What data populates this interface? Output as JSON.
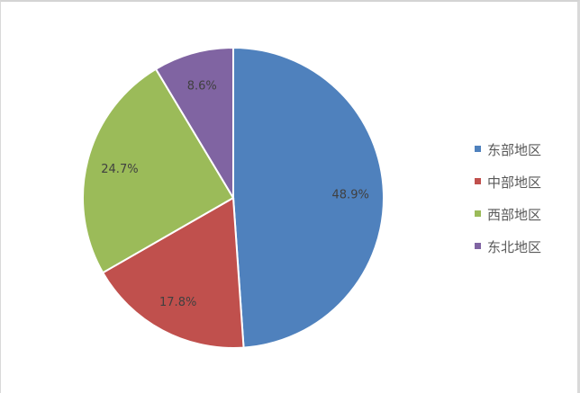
{
  "chart_data": {
    "type": "pie",
    "start_angle": "top",
    "direction": "clockwise",
    "legend_position": "right",
    "categories": [
      "东部地区",
      "中部地区",
      "西部地区",
      "东北地区"
    ],
    "values": [
      48.9,
      17.8,
      24.7,
      8.6
    ],
    "data_labels": [
      "48.9%",
      "17.8%",
      "24.7%",
      "8.6%"
    ],
    "colors": [
      "#4F81BD",
      "#C0504D",
      "#9BBB59",
      "#8064A2"
    ]
  }
}
